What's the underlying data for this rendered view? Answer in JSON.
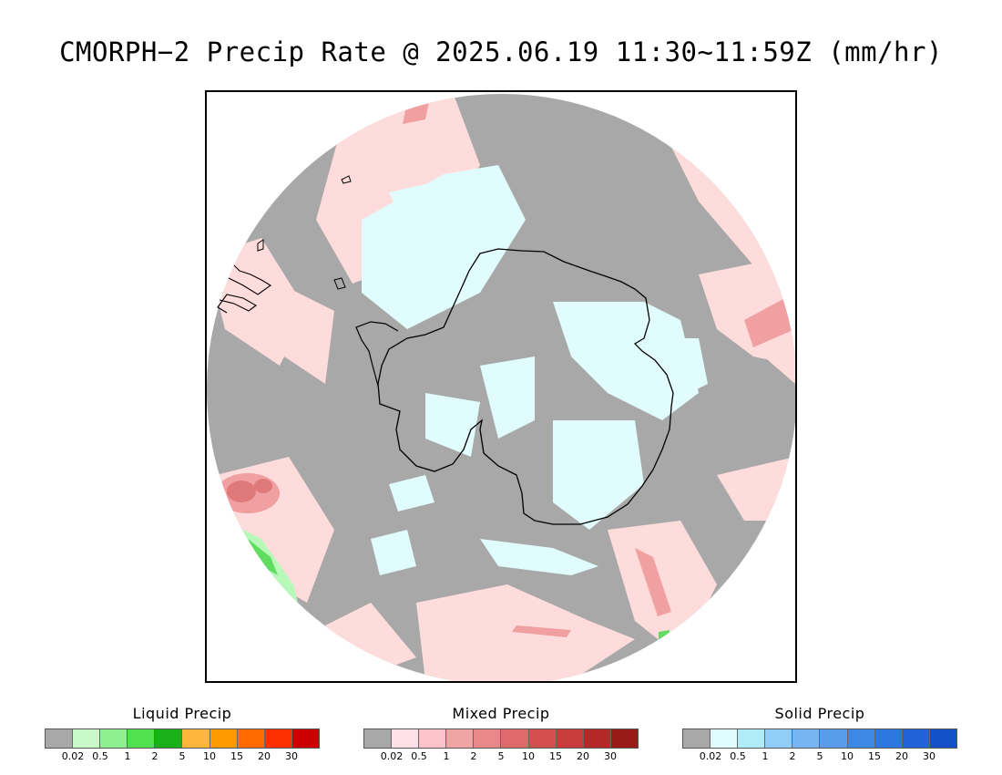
{
  "title": "CMORPH−2 Precip Rate @ 2025.06.19 11:30~11:59Z (mm/hr)",
  "map": {
    "projection": "south-polar-stereographic",
    "colors": {
      "no_precip": "#a8a8a8",
      "mixed_light": "#ffdcdc",
      "mixed_mid": "#f0a0a0",
      "mixed_heavy": "#e07a7a",
      "solid_light": "#e0fcfc",
      "liquid_light": "#b8f8b8",
      "liquid_mid": "#60dc60",
      "coastline": "#000000"
    }
  },
  "legends": [
    {
      "title": "Liquid Precip",
      "colors": [
        "#a8a8a8",
        "#c8fac8",
        "#8ef08e",
        "#50e050",
        "#1ab01a",
        "#ffb43c",
        "#ff9a00",
        "#ff6a00",
        "#ff3000",
        "#cc0000"
      ],
      "ticks": [
        "0.02",
        "0.5",
        "1",
        "2",
        "5",
        "10",
        "15",
        "20",
        "30"
      ]
    },
    {
      "title": "Mixed Precip",
      "colors": [
        "#a8a8a8",
        "#ffe0e6",
        "#fcc4c8",
        "#f0a4a4",
        "#e88888",
        "#de6a6a",
        "#d45050",
        "#c83c3c",
        "#b42828",
        "#9a1a1a"
      ],
      "ticks": [
        "0.02",
        "0.5",
        "1",
        "2",
        "5",
        "10",
        "15",
        "20",
        "30"
      ]
    },
    {
      "title": "Solid Precip",
      "colors": [
        "#a8a8a8",
        "#e0fcfe",
        "#b0ecf8",
        "#90cef8",
        "#78b4f2",
        "#5a9cec",
        "#3c8ae6",
        "#2c78e0",
        "#2062d8",
        "#1450c8"
      ],
      "ticks": [
        "0.02",
        "0.5",
        "1",
        "2",
        "5",
        "10",
        "15",
        "20",
        "30"
      ]
    }
  ]
}
